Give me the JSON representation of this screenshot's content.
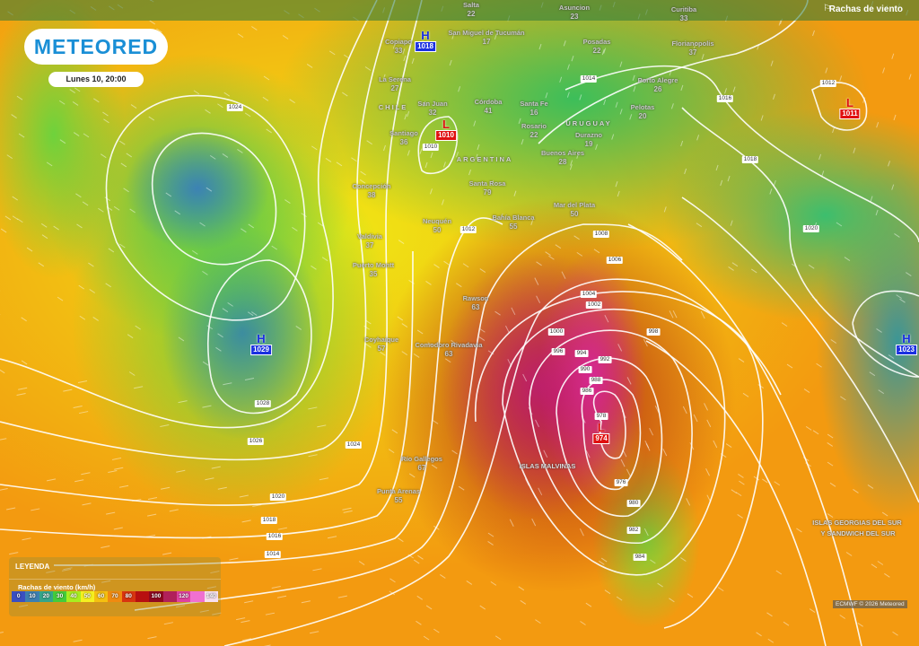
{
  "header": {
    "layer_title": "Rachas de viento",
    "layer_icon": "wind-flag-icon"
  },
  "logo": {
    "text": "METEORED"
  },
  "datetime": "Lunes 10, 20:00",
  "legend": {
    "title": "LEYENDA",
    "subtitle": "Rachas de viento (km/h)",
    "scale": [
      {
        "label": "0",
        "color": "#3a4fc0"
      },
      {
        "label": "10",
        "color": "#3d7fb0"
      },
      {
        "label": "20",
        "color": "#35a58a"
      },
      {
        "label": "30",
        "color": "#44cc3a"
      },
      {
        "label": "40",
        "color": "#a8ee20"
      },
      {
        "label": "50",
        "color": "#f5f020"
      },
      {
        "label": "60",
        "color": "#f5c010"
      },
      {
        "label": "70",
        "color": "#f08a10"
      },
      {
        "label": "80",
        "color": "#d83510"
      },
      {
        "label": "",
        "color": "#b81010"
      },
      {
        "label": "100",
        "color": "#900820"
      },
      {
        "label": "",
        "color": "#b0205a"
      },
      {
        "label": "120",
        "color": "#e040a0"
      },
      {
        "label": "",
        "color": "#f070d0"
      },
      {
        "label": "140",
        "color": "#f8e0f0"
      }
    ]
  },
  "cities": [
    {
      "name": "Salta",
      "value": "22"
    },
    {
      "name": "Asuncion",
      "value": "23"
    },
    {
      "name": "Curitiba",
      "value": "33"
    },
    {
      "name": "Copiapo",
      "value": "33"
    },
    {
      "name": "San Miguel de Tucumán",
      "value": "17"
    },
    {
      "name": "Posadas",
      "value": "22"
    },
    {
      "name": "Florianopolis",
      "value": "37"
    },
    {
      "name": "La Serena",
      "value": "27"
    },
    {
      "name": "Porto Alegre",
      "value": "26"
    },
    {
      "name": "San Juan",
      "value": "32"
    },
    {
      "name": "Córdoba",
      "value": "41"
    },
    {
      "name": "Santa Fe",
      "value": "16"
    },
    {
      "name": "Pelotas",
      "value": "20"
    },
    {
      "name": "Santiago",
      "value": "36"
    },
    {
      "name": "Rosario",
      "value": "22"
    },
    {
      "name": "Durazno",
      "value": "19"
    },
    {
      "name": "Buenos Aires",
      "value": "28"
    },
    {
      "name": "Concepción",
      "value": "38"
    },
    {
      "name": "Santa Rosa",
      "value": "79"
    },
    {
      "name": "Neuquén",
      "value": "50"
    },
    {
      "name": "Bahía Blanca",
      "value": "55"
    },
    {
      "name": "Mar del Plata",
      "value": "50"
    },
    {
      "name": "Valdivia",
      "value": "37"
    },
    {
      "name": "Puerto Montt",
      "value": "35"
    },
    {
      "name": "Rawson",
      "value": "63"
    },
    {
      "name": "Coyhaique",
      "value": "57"
    },
    {
      "name": "Comodoro Rivadavia",
      "value": "63"
    },
    {
      "name": "Río Gallegos",
      "value": "67"
    },
    {
      "name": "Punta Arenas",
      "value": "55"
    }
  ],
  "regions": {
    "chile": "CHILE",
    "argentina": "ARGENTINA",
    "uruguay": "URUGUAY",
    "malvinas": "ISLAS MALVINAS",
    "georgias_1": "ISLAS GEORGIAS DEL SUR",
    "georgias_2": "Y SANDWICH DEL SUR"
  },
  "pressure_centers": [
    {
      "type": "H",
      "value": "1018"
    },
    {
      "type": "L",
      "value": "1010"
    },
    {
      "type": "H",
      "value": "1029"
    },
    {
      "type": "L",
      "value": "974"
    },
    {
      "type": "L",
      "value": "1011"
    },
    {
      "type": "H",
      "value": "1023"
    }
  ],
  "isobar_labels": [
    "1024",
    "1012",
    "1014",
    "1016",
    "1018",
    "1020",
    "1010",
    "1012",
    "1008",
    "1006",
    "1004",
    "1002",
    "1000",
    "996",
    "994",
    "992",
    "990",
    "988",
    "986",
    "978",
    "976",
    "980",
    "982",
    "984",
    "1028",
    "1026",
    "1024",
    "1020",
    "1018",
    "1016",
    "1014",
    "998"
  ],
  "credit": "ECMWF © 2026 Meteored"
}
